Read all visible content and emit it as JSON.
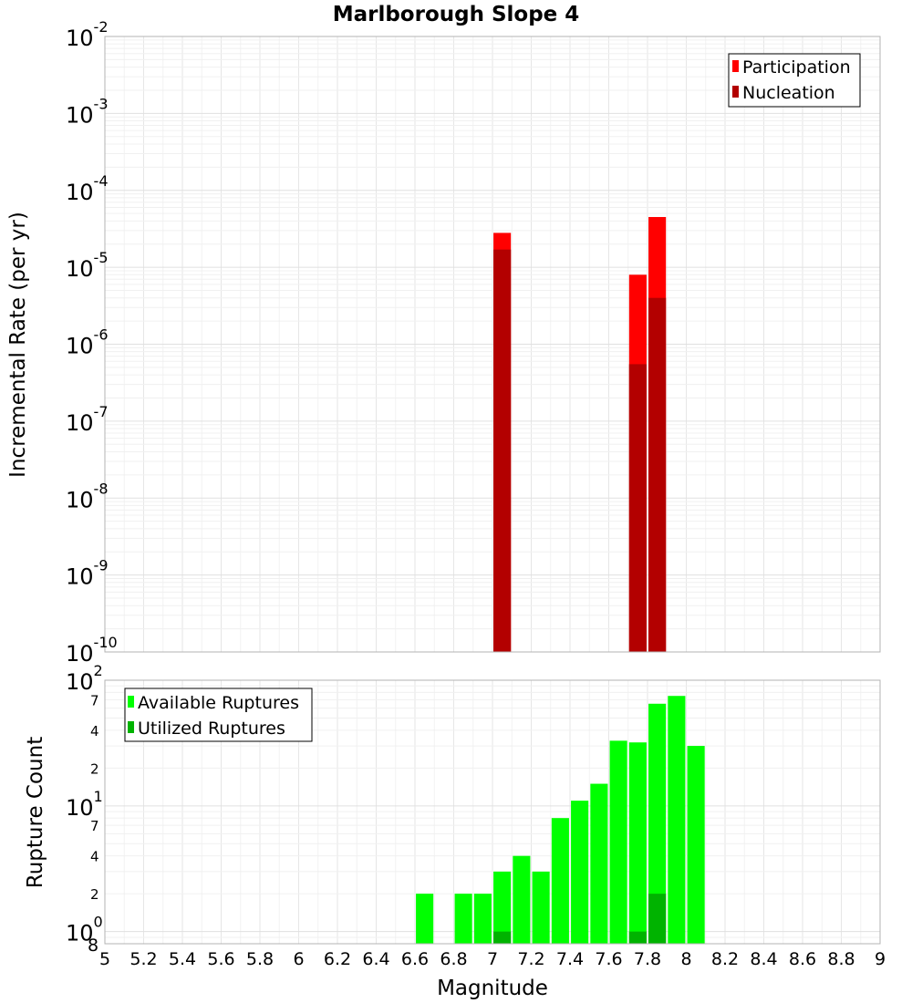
{
  "chart_data": [
    {
      "type": "bar",
      "title": "Marlborough Slope 4",
      "xlabel": "Magnitude",
      "ylabel": "Incremental Rate (per yr)",
      "yscale": "log",
      "ylim": [
        1e-10,
        0.01
      ],
      "xlim": [
        5,
        9
      ],
      "bar_width": 0.09,
      "y_tick_labels": [
        {
          "base": "10",
          "exp": "-2"
        },
        {
          "base": "10",
          "exp": "-3"
        },
        {
          "base": "10",
          "exp": "-4"
        },
        {
          "base": "10",
          "exp": "-5"
        },
        {
          "base": "10",
          "exp": "-6"
        },
        {
          "base": "10",
          "exp": "-7"
        },
        {
          "base": "10",
          "exp": "-8"
        },
        {
          "base": "10",
          "exp": "-9"
        },
        {
          "base": "10",
          "exp": "-10"
        }
      ],
      "legend": [
        "Participation",
        "Nucleation"
      ],
      "legend_position": "top-right",
      "series": [
        {
          "name": "Participation",
          "color": "#ff0000",
          "x": [
            7.05,
            7.75,
            7.85
          ],
          "values": [
            2.8e-05,
            8e-06,
            4.5e-05
          ]
        },
        {
          "name": "Nucleation",
          "color": "#b30000",
          "x": [
            7.05,
            7.75,
            7.85
          ],
          "values": [
            1.7e-05,
            5.5e-07,
            4e-06
          ]
        }
      ]
    },
    {
      "type": "bar",
      "xlabel": "Magnitude",
      "ylabel": "Rupture Count",
      "yscale": "log",
      "ylim": [
        0.8,
        100
      ],
      "xlim": [
        5,
        9
      ],
      "bar_width": 0.09,
      "x_tick_labels": [
        "5",
        "5.2",
        "5.4",
        "5.6",
        "5.8",
        "6",
        "6.2",
        "6.4",
        "6.6",
        "6.8",
        "7",
        "7.2",
        "7.4",
        "7.6",
        "7.8",
        "8",
        "8.2",
        "8.4",
        "8.6",
        "8.8",
        "9"
      ],
      "y_major_labels": [
        {
          "base": "10",
          "exp": "2"
        },
        {
          "base": "10",
          "exp": "1"
        },
        {
          "base": "10",
          "exp": "0"
        }
      ],
      "y_minor_labels": [
        "7",
        "4",
        "2",
        "7",
        "4",
        "2"
      ],
      "y_bottom_label": "8",
      "legend": [
        "Available Ruptures",
        "Utilized Ruptures"
      ],
      "legend_position": "top-left",
      "series": [
        {
          "name": "Available Ruptures",
          "color": "#00ff00",
          "x": [
            6.65,
            6.85,
            6.95,
            7.05,
            7.15,
            7.25,
            7.35,
            7.45,
            7.55,
            7.65,
            7.75,
            7.85,
            7.95,
            8.05
          ],
          "values": [
            2,
            2,
            2,
            3,
            4,
            3,
            8,
            11,
            15,
            33,
            32,
            65,
            75,
            30
          ]
        },
        {
          "name": "Utilized Ruptures",
          "color": "#00b300",
          "x": [
            7.05,
            7.75,
            7.85
          ],
          "values": [
            1,
            1,
            2
          ]
        }
      ]
    }
  ]
}
